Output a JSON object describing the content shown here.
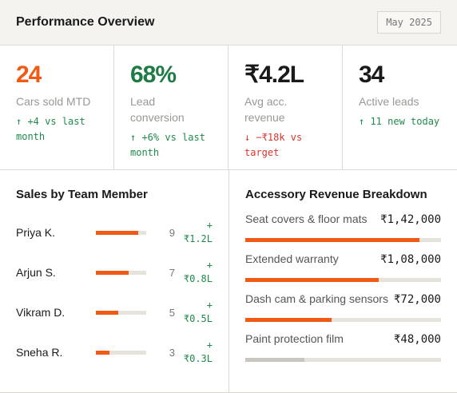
{
  "header": {
    "title": "Performance Overview",
    "date": "May 2025"
  },
  "kpis": [
    {
      "value": "24",
      "label": "Cars sold MTD",
      "delta": "↑ +4 vs last month",
      "value_color": "#f05a14",
      "delta_color": "#1f8a4c"
    },
    {
      "value": "68%",
      "label": "Lead conversion",
      "delta": "↑ +6% vs last month",
      "value_color": "#1f7a45",
      "delta_color": "#1f8a4c"
    },
    {
      "value": "₹4.2L",
      "label": "Avg acc. revenue",
      "delta": "↓ −₹18k vs target",
      "value_color": "#1a1a1a",
      "delta_color": "#d9342b"
    },
    {
      "value": "34",
      "label": "Active leads",
      "delta": "↑ 11 new today",
      "value_color": "#1a1a1a",
      "delta_color": "#1f8a4c"
    }
  ],
  "team": {
    "title": "Sales by Team Member",
    "members": [
      {
        "name": "Priya K.",
        "bar": 84,
        "count": "9",
        "revenue": "+ ₹1.2L"
      },
      {
        "name": "Arjun S.",
        "bar": 65,
        "count": "7",
        "revenue": "+ ₹0.8L"
      },
      {
        "name": "Vikram D.",
        "bar": 44,
        "count": "5",
        "revenue": "+ ₹0.5L"
      },
      {
        "name": "Sneha R.",
        "bar": 27,
        "count": "3",
        "revenue": "+ ₹0.3L"
      }
    ]
  },
  "accessories": {
    "title": "Accessory Revenue Breakdown",
    "items": [
      {
        "name": "Seat covers & floor mats",
        "amount": "₹1,42,000",
        "bar": 89,
        "color": "#f05a14"
      },
      {
        "name": "Extended warranty",
        "amount": "₹1,08,000",
        "bar": 68,
        "color": "#f05a14"
      },
      {
        "name": "Dash cam & parking sensors",
        "amount": "₹72,000",
        "bar": 44,
        "color": "#f05a14"
      },
      {
        "name": "Paint protection film",
        "amount": "₹48,000",
        "bar": 30,
        "color": "#c9c6bf"
      }
    ]
  }
}
